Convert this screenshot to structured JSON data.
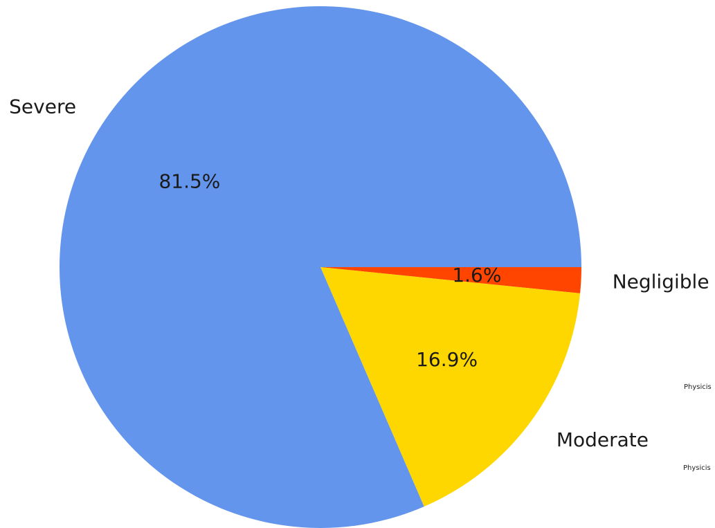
{
  "chart_data": {
    "type": "pie",
    "slices": [
      {
        "label": "Negligible",
        "percent": 1.6,
        "percent_label": "1.6%",
        "color": "#ff4500"
      },
      {
        "label": "Moderate",
        "percent": 16.9,
        "percent_label": "16.9%",
        "color": "#ffd700"
      },
      {
        "label": "Severe",
        "percent": 81.5,
        "percent_label": "81.5%",
        "color": "#6495ed"
      }
    ],
    "start_angle_deg": 0,
    "direction": "clockwise",
    "legend": "none",
    "clipped_notes": [
      "Physicis",
      "Physicis"
    ]
  }
}
